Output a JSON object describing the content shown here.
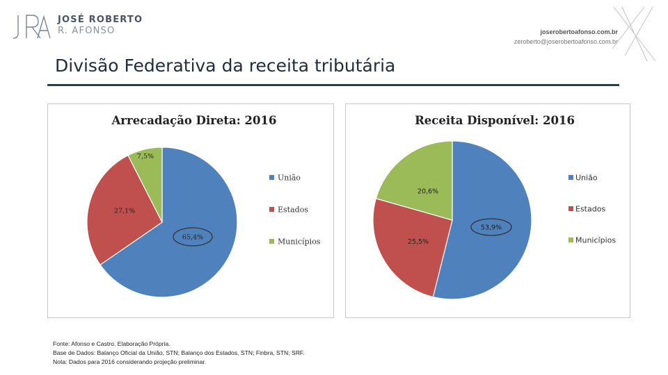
{
  "header": {
    "logo_name": "JOSÉ ROBERTO",
    "logo_sub": "R. AFONSO",
    "site": "joserobertoafonso.com.br",
    "email": "zeroberto@joserobertoafonso.com.br"
  },
  "page_title": "Divisão Federativa da receita tributária",
  "colors": {
    "uniao": "#4f81bd",
    "estados": "#c0504d",
    "municipios": "#9bbb59"
  },
  "chart_data": [
    {
      "type": "pie",
      "title": "Arrecadação Direta: 2016",
      "categories": [
        "União",
        "Estados",
        "Municípios"
      ],
      "values": [
        65.4,
        27.1,
        7.5
      ],
      "data_labels": [
        "65,4%",
        "27,1%",
        "7,5%"
      ],
      "legend": [
        "União",
        "Estados",
        "Municípios"
      ],
      "legend_position": "right",
      "highlighted": "65,4%"
    },
    {
      "type": "pie",
      "title": "Receita Disponível: 2016",
      "categories": [
        "União",
        "Estados",
        "Municípios"
      ],
      "values": [
        53.9,
        25.5,
        20.6
      ],
      "data_labels": [
        "53,9%",
        "25,5%",
        "20,6%"
      ],
      "legend": [
        "União",
        "Estados",
        "Municípios"
      ],
      "legend_position": "right",
      "highlighted": "53,9%"
    }
  ],
  "notes": [
    "Fonte: Afonso e Castro. Elaboração Própria.",
    "Base de Dados: Balanço Oficial da União, STN; Balanço dos Estados, STN; Finbra, STN; SRF.",
    "Nota: Dados para 2016 considerando projeção preliminar."
  ]
}
